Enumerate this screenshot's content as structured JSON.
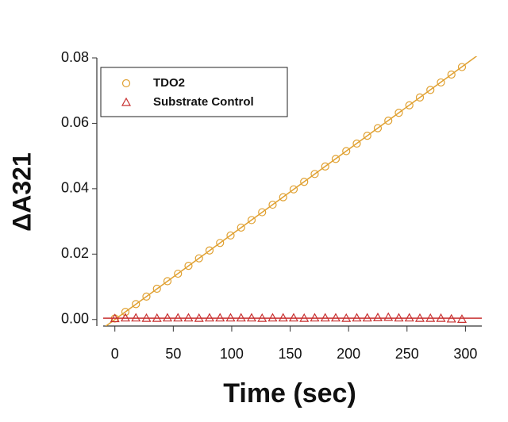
{
  "chart_data": {
    "type": "scatter",
    "xlabel": "Time (sec)",
    "ylabel": "ΔA321",
    "xlim": [
      -10,
      314
    ],
    "ylim": [
      -0.002,
      0.08
    ],
    "xticks": [
      0,
      50,
      100,
      150,
      200,
      250,
      300
    ],
    "yticks": [
      {
        "value": 0,
        "label": "0.00"
      },
      {
        "value": 0.02,
        "label": "0.02"
      },
      {
        "value": 0.04,
        "label": "0.04"
      },
      {
        "value": 0.06,
        "label": "0.06"
      },
      {
        "value": 0.08,
        "label": "0.08"
      }
    ],
    "legend": "upper left",
    "series": [
      {
        "name": "TDO2",
        "color": "#e0a030",
        "marker": "circle",
        "x": [
          0,
          9,
          18,
          27,
          36,
          45,
          54,
          63,
          72,
          81,
          90,
          99,
          108,
          117,
          126,
          135,
          144,
          153,
          162,
          171,
          180,
          189,
          198,
          207,
          216,
          225,
          234,
          243,
          252,
          261,
          270,
          279,
          288,
          297
        ],
        "values": [
          0.0003,
          0.0023,
          0.0047,
          0.007,
          0.0094,
          0.0117,
          0.014,
          0.0164,
          0.0187,
          0.0211,
          0.0234,
          0.0257,
          0.0281,
          0.0304,
          0.0328,
          0.0351,
          0.0374,
          0.0398,
          0.0421,
          0.0445,
          0.0468,
          0.0491,
          0.0515,
          0.0538,
          0.0562,
          0.0585,
          0.0608,
          0.0632,
          0.0655,
          0.0679,
          0.0702,
          0.0725,
          0.0749,
          0.0772
        ],
        "fit": {
          "x": [
            -8,
            314
          ],
          "values": [
            -0.0021,
            0.0817
          ]
        }
      },
      {
        "name": "Substrate Control",
        "color": "#c83030",
        "marker": "triangle",
        "x": [
          0,
          9,
          18,
          27,
          36,
          45,
          54,
          63,
          72,
          81,
          90,
          99,
          108,
          117,
          126,
          135,
          144,
          153,
          162,
          171,
          180,
          189,
          198,
          207,
          216,
          225,
          234,
          243,
          252,
          261,
          270,
          279,
          288,
          297
        ],
        "values": [
          0.0003,
          0.0005,
          0.0005,
          0.0004,
          0.0004,
          0.0005,
          0.0005,
          0.0005,
          0.0004,
          0.0005,
          0.0005,
          0.0005,
          0.0005,
          0.0005,
          0.0004,
          0.0005,
          0.0005,
          0.0005,
          0.0004,
          0.0005,
          0.0005,
          0.0005,
          0.0004,
          0.0005,
          0.0005,
          0.0006,
          0.0007,
          0.0005,
          0.0005,
          0.0004,
          0.0004,
          0.0004,
          0.0002,
          0.0001
        ],
        "fit": {
          "x": [
            -10,
            314
          ],
          "values": [
            0.0004,
            0.0004
          ]
        }
      }
    ]
  }
}
